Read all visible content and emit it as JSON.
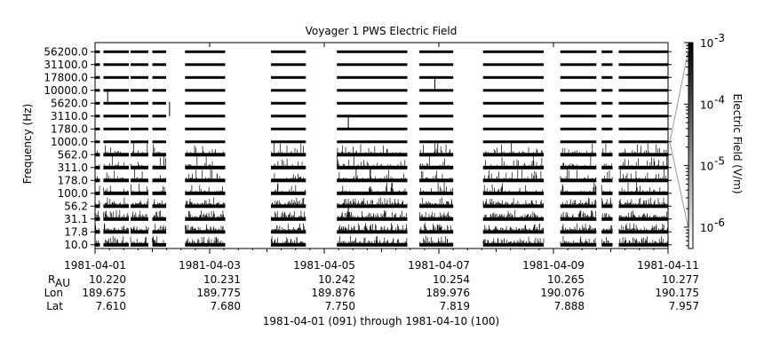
{
  "chart_data": {
    "type": "heatmap",
    "title": "Voyager 1 PWS Electric Field",
    "ylabel": "Frequency (Hz)",
    "colorbar_label": "Electric Field (V/m)",
    "colorbar_ticks": [
      "10",
      "10",
      "10",
      "10"
    ],
    "colorbar_exponents": [
      "-3",
      "-4",
      "-5",
      "-6"
    ],
    "colorbar_range": [
      4.5e-07,
      0.001
    ],
    "colorbar_scale": "log",
    "channel_labels": [
      "56200.0",
      "31100.0",
      "17800.0",
      "10000.0",
      "5620.0",
      "3110.0",
      "1780.0",
      "1000.0",
      "562.0",
      "311.0",
      "178.0",
      "100.0",
      "56.2",
      "31.1",
      "17.8",
      "10.0"
    ],
    "date_range": [
      "1981-04-01",
      "1981-04-11"
    ],
    "x_ticks": [
      "1981-04-01",
      "1981-04-03",
      "1981-04-05",
      "1981-04-07",
      "1981-04-09",
      "1981-04-11"
    ],
    "ephemeris_labels": {
      "r": "R",
      "r_sub": "AU",
      "lon": "Lon",
      "lat": "Lat"
    },
    "ephemeris": {
      "r": [
        "10.220",
        "10.231",
        "10.242",
        "10.254",
        "10.265",
        "10.277"
      ],
      "lon": [
        "189.675",
        "189.775",
        "189.876",
        "189.976",
        "190.076",
        "190.175"
      ],
      "lat": [
        "7.610",
        "7.680",
        "7.750",
        "7.819",
        "7.888",
        "7.957"
      ]
    },
    "footer": "1981-04-01 (091) through 1981-04-10 (100)",
    "data_gaps_days": [
      [
        0.085,
        0.145
      ],
      [
        0.59,
        0.62
      ],
      [
        0.93,
        1.0
      ],
      [
        1.24,
        1.57
      ],
      [
        2.27,
        3.07
      ],
      [
        3.68,
        4.22
      ],
      [
        5.45,
        5.66
      ],
      [
        6.25,
        6.77
      ],
      [
        7.83,
        8.12
      ],
      [
        8.75,
        8.84
      ],
      [
        9.03,
        9.14
      ]
    ],
    "notable_spikes": [
      {
        "channel": "5620.0",
        "day": 0.22
      },
      {
        "channel": "3110.0",
        "day": 1.3
      },
      {
        "channel": "1780.0",
        "day": 4.42
      },
      {
        "channel": "10000.0",
        "day": 5.93
      },
      {
        "channel": "31.1",
        "day": 4.42
      }
    ]
  }
}
